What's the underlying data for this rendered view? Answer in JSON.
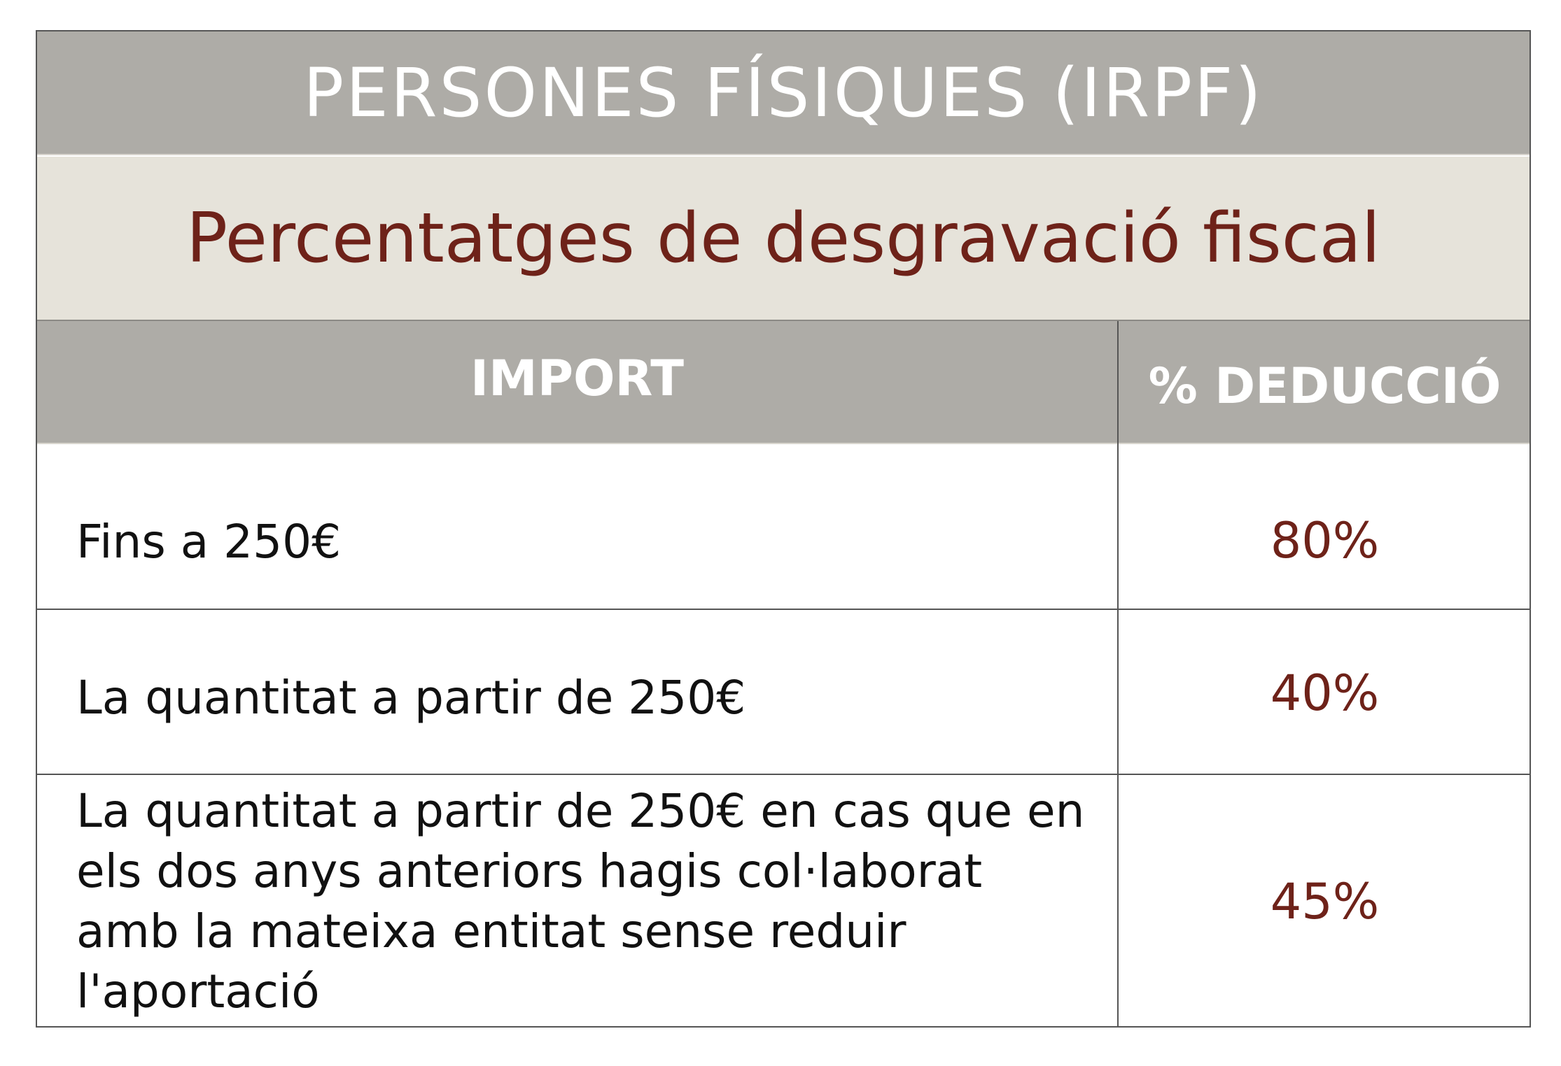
{
  "header": {
    "title": "PERSONES FÍSIQUES (IRPF)",
    "subtitle": "Percentatges de desgravació fiscal"
  },
  "table": {
    "columns": [
      "IMPORT",
      "% DEDUCCIÓ"
    ],
    "rows": [
      {
        "import": "Fins a 250€",
        "deduccio": "80%"
      },
      {
        "import": "La quantitat a partir de 250€",
        "deduccio": "40%"
      },
      {
        "import": "La quantitat a partir de 250€ en cas que en els dos anys anteriors hagis col·laborat amb la mateixa entitat sense reduir l'aportació",
        "deduccio": "45%"
      }
    ]
  },
  "colors": {
    "header_bg": "#aeaca7",
    "subtitle_bg": "#e6e3da",
    "accent_text": "#6e2219",
    "header_text": "#ffffff"
  }
}
